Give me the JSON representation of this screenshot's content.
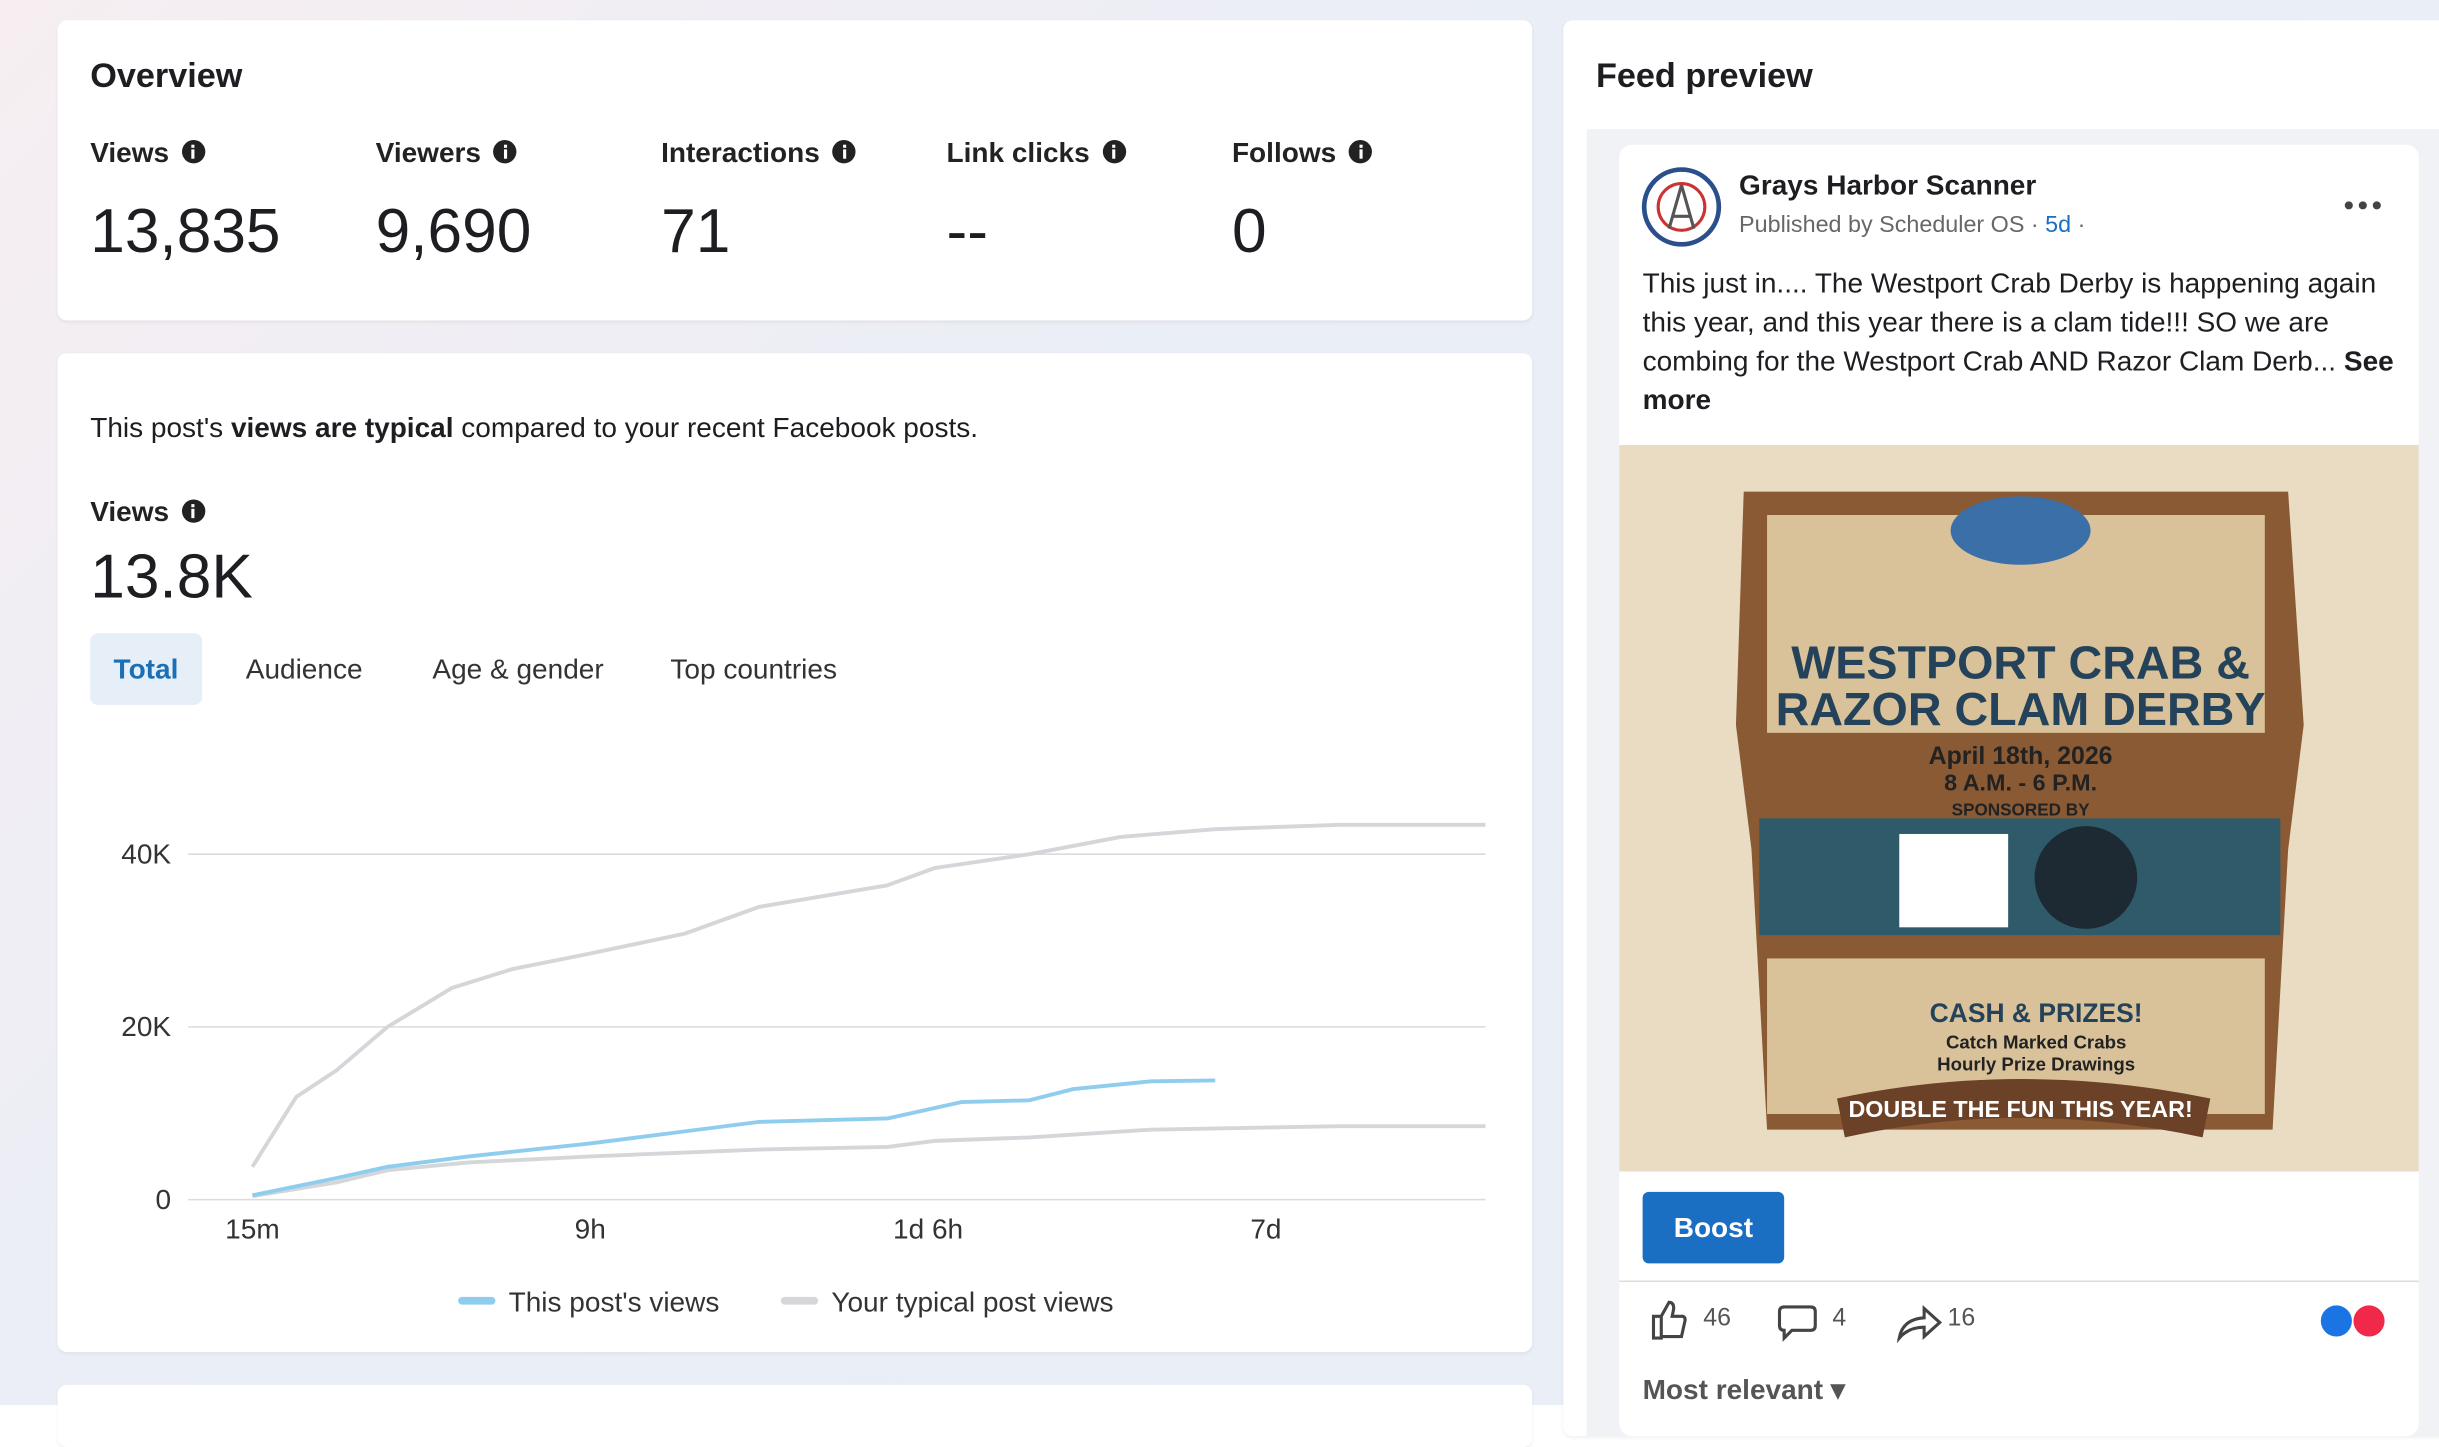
{
  "overview": {
    "title": "Overview",
    "metrics": [
      {
        "label": "Views",
        "value": "13,835"
      },
      {
        "label": "Viewers",
        "value": "9,690"
      },
      {
        "label": "Interactions",
        "value": "71"
      },
      {
        "label": "Link clicks",
        "value": "--"
      },
      {
        "label": "Follows",
        "value": "0"
      }
    ]
  },
  "summary": {
    "prefix": "This post's ",
    "bold": "views are typical",
    "suffix": " compared to your recent Facebook posts."
  },
  "views": {
    "label": "Views",
    "value": "13.8K"
  },
  "tabs": [
    "Total",
    "Audience",
    "Age & gender",
    "Top countries"
  ],
  "chart_data": {
    "type": "line",
    "xlim": [
      -0.19,
      3.65
    ],
    "xticks": [
      {
        "value": 0,
        "label": "15m"
      },
      {
        "value": 1,
        "label": "9h"
      },
      {
        "value": 2,
        "label": "1d 6h"
      },
      {
        "value": 3,
        "label": "7d"
      }
    ],
    "ylim": [
      0,
      50000
    ],
    "yticks": [
      0,
      {
        "value": 20000,
        "label": "20K"
      },
      {
        "value": 40000,
        "label": "40K"
      }
    ],
    "grid": true,
    "series": [
      {
        "name": "This post's views",
        "color": "#8fcdee",
        "x": [
          0,
          0.25,
          0.4,
          0.64,
          1,
          1.28,
          1.5,
          1.88,
          2.1,
          2.3,
          2.43,
          2.66,
          2.85
        ],
        "values": [
          500,
          2500,
          3800,
          5000,
          6500,
          7900,
          9000,
          9400,
          11300,
          11500,
          12800,
          13700,
          13800
        ]
      },
      {
        "name": "Your typical post views",
        "color": "#d4d6d9",
        "x": [
          0,
          0.13,
          0.25,
          0.4,
          0.59,
          0.77,
          1,
          1.28,
          1.5,
          1.88,
          2.02,
          2.3,
          2.57,
          2.85,
          3.22,
          3.65
        ],
        "values": [
          3800,
          11900,
          15000,
          20000,
          24500,
          26700,
          28500,
          30800,
          33900,
          36400,
          38400,
          40000,
          42000,
          42900,
          43400,
          43400
        ]
      },
      {
        "name": null,
        "color": "#d4d6d9",
        "x": [
          0,
          0.25,
          0.4,
          0.64,
          1,
          1.5,
          1.88,
          2.02,
          2.3,
          2.66,
          3.22,
          3.65
        ],
        "values": [
          400,
          2000,
          3400,
          4300,
          5000,
          5800,
          6100,
          6800,
          7200,
          8100,
          8500,
          8500
        ]
      }
    ]
  },
  "feed": {
    "title": "Feed preview",
    "page_name": "Grays Harbor Scanner",
    "published_by": "Published by Scheduler OS",
    "time": "5d",
    "text": "This just in.... The Westport Crab Derby is happening again this year, and this year there is a clam tide!!! SO we are combing for the Westport Crab AND Razor Clam Derb...",
    "see_more": "See more",
    "image_text": [
      "WESTPORT CRAB &",
      "RAZOR CLAM DERBY",
      "April 18th, 2026",
      "8 A.M. - 6 P.M.",
      "SPONSORED BY",
      "CASH & PRIZES!",
      "Catch Marked Crabs",
      "Hourly Prize Drawings",
      "DOUBLE THE FUN THIS YEAR!"
    ],
    "boost": "Boost",
    "likes": "46",
    "comments": "4",
    "shares": "16",
    "sort": "Most relevant"
  }
}
